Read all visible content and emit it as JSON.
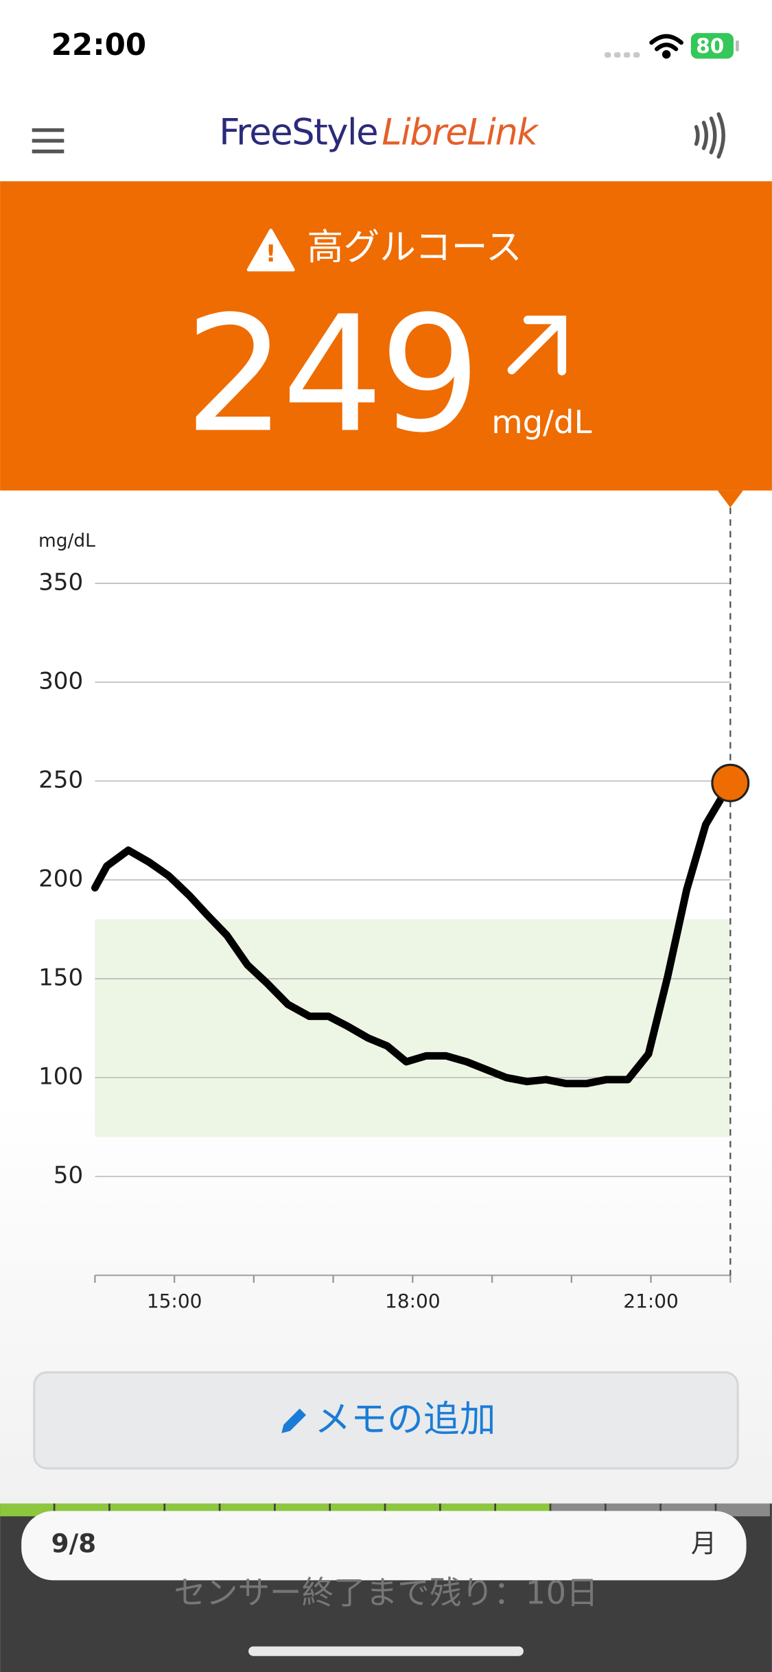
{
  "status_bar": {
    "time": "22:00",
    "battery": "80"
  },
  "header": {
    "logo_freestyle": "FreeStyle",
    "logo_librelink": "LibreLink"
  },
  "alert": {
    "label": "高グルコース",
    "value": "249",
    "unit": "mg/dL"
  },
  "chart_data": {
    "type": "line",
    "y_label": "mg/dL",
    "x": [
      14.0,
      14.15,
      14.42,
      14.68,
      14.93,
      15.19,
      15.42,
      15.66,
      15.92,
      16.16,
      16.43,
      16.7,
      16.94,
      17.18,
      17.44,
      17.68,
      17.92,
      18.17,
      18.42,
      18.68,
      18.93,
      19.18,
      19.44,
      19.68,
      19.93,
      20.19,
      20.44,
      20.71,
      20.97,
      21.21,
      21.45,
      21.69,
      22.0
    ],
    "series": [
      {
        "color": "#000000",
        "values": [
          196,
          207,
          215,
          209,
          202,
          192,
          182,
          172,
          157,
          148,
          137,
          131,
          131,
          126,
          120,
          116,
          108,
          111,
          111,
          108,
          104,
          100,
          98,
          99,
          97,
          97,
          99,
          99,
          112,
          151,
          195,
          228,
          249
        ]
      }
    ],
    "xlim": [
      14,
      22
    ],
    "ylim": [
      0,
      350
    ],
    "yticks": [
      50,
      100,
      150,
      200,
      250,
      300,
      350
    ],
    "xticks": [
      {
        "value": 15,
        "label": "15:00"
      },
      {
        "value": 18,
        "label": "18:00"
      },
      {
        "value": 21,
        "label": "21:00"
      }
    ],
    "minor_xticks": [
      14,
      16,
      17,
      19,
      20,
      22
    ],
    "grid": true,
    "target_range": [
      70,
      180
    ],
    "target_color": "#edf5e4",
    "marker_color": "#ee6c02"
  },
  "button": {
    "label": "メモの追加"
  },
  "footer": {
    "date": "9/8",
    "weekday": "月",
    "sensor": "センサー終了まで残り：10日"
  }
}
